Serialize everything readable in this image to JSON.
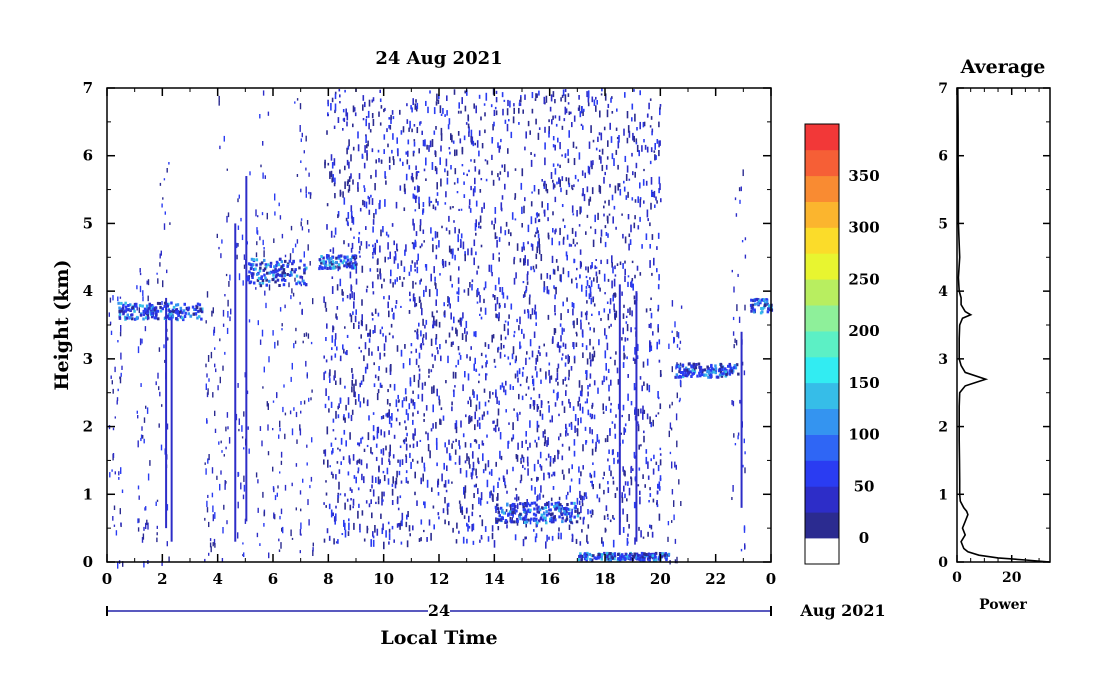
{
  "chart_data": [
    {
      "type": "heatmap",
      "title": "24 Aug 2021",
      "xlabel": "Local Time",
      "ylabel": "Height (km)",
      "xlim": [
        0,
        24
      ],
      "ylim": [
        0,
        7
      ],
      "x_ticks": [
        "0",
        "2",
        "4",
        "6",
        "8",
        "10",
        "12",
        "14",
        "16",
        "18",
        "20",
        "22",
        "0"
      ],
      "y_ticks": [
        "0",
        "1",
        "2",
        "3",
        "4",
        "5",
        "6",
        "7"
      ],
      "day_label": "24",
      "date_suffix": "Aug 2021",
      "colorbar": {
        "ticks": [
          "0",
          "50",
          "100",
          "150",
          "200",
          "250",
          "300",
          "350"
        ],
        "colors": [
          "#ffffff",
          "#2b2b90",
          "#2d2dc8",
          "#2a3cf2",
          "#2f66f5",
          "#3494f0",
          "#36bde8",
          "#32ecf2",
          "#5cf0c5",
          "#8ef09a",
          "#b8ee60",
          "#e8f530",
          "#fbdc2a",
          "#fbb52e",
          "#f98b32",
          "#f65f36",
          "#f23838"
        ]
      },
      "features": [
        {
          "name": "layer ~3.7 km",
          "x": [
            0.3,
            3.4
          ],
          "height_km": [
            3.6,
            3.85
          ]
        },
        {
          "name": "layer ~4.3 km",
          "x": [
            5.0,
            7.2
          ],
          "height_km": [
            4.1,
            4.5
          ]
        },
        {
          "name": "layer ~4.45 km",
          "x": [
            7.6,
            9.0
          ],
          "height_km": [
            4.35,
            4.55
          ]
        },
        {
          "name": "scattered echoes",
          "x": [
            7.8,
            20.0
          ],
          "height_km": [
            0.3,
            7.0
          ]
        },
        {
          "name": "layer ~0.7 km",
          "x": [
            14.0,
            17.0
          ],
          "height_km": [
            0.6,
            0.9
          ]
        },
        {
          "name": "surface layer",
          "x": [
            17.0,
            20.3
          ],
          "height_km": [
            0.05,
            0.15
          ]
        },
        {
          "name": "layer ~2.85 km",
          "x": [
            20.5,
            22.8
          ],
          "height_km": [
            2.75,
            2.95
          ]
        },
        {
          "name": "layer ~3.8 km",
          "x": [
            23.2,
            24.0
          ],
          "height_km": [
            3.7,
            3.9
          ]
        }
      ]
    },
    {
      "type": "line",
      "title": "Average",
      "xlabel": "Power",
      "ylabel": "",
      "xlim": [
        0,
        34
      ],
      "ylim": [
        0,
        7
      ],
      "x_ticks": [
        "0",
        "20"
      ],
      "y_ticks": [
        "0",
        "1",
        "2",
        "3",
        "4",
        "5",
        "6",
        "7"
      ],
      "series": [
        {
          "height_km": [
            0.0,
            0.03,
            0.06,
            0.1,
            0.15,
            0.2,
            0.3,
            0.4,
            0.5,
            0.6,
            0.7,
            0.75,
            0.8,
            0.9,
            1.0,
            1.2,
            1.5,
            1.8,
            2.0,
            2.3,
            2.5,
            2.6,
            2.7,
            2.8,
            2.9,
            3.0,
            3.1,
            3.3,
            3.5,
            3.6,
            3.65,
            3.7,
            3.8,
            3.9,
            4.0,
            4.2,
            4.5,
            5.0,
            5.5,
            6.0,
            6.5,
            7.0
          ],
          "power": [
            34,
            25,
            15,
            8,
            4,
            2.5,
            1.5,
            3,
            2,
            3,
            4,
            3.5,
            2.5,
            1.2,
            1.0,
            1.0,
            0.9,
            0.8,
            0.8,
            0.8,
            1.0,
            3,
            10.5,
            3,
            1.5,
            0.8,
            0.8,
            0.8,
            1.0,
            2,
            5,
            3,
            1.5,
            1.5,
            0.8,
            0.5,
            1.0,
            0.5,
            0.5,
            0.4,
            0.4,
            0.3
          ]
        }
      ]
    }
  ]
}
